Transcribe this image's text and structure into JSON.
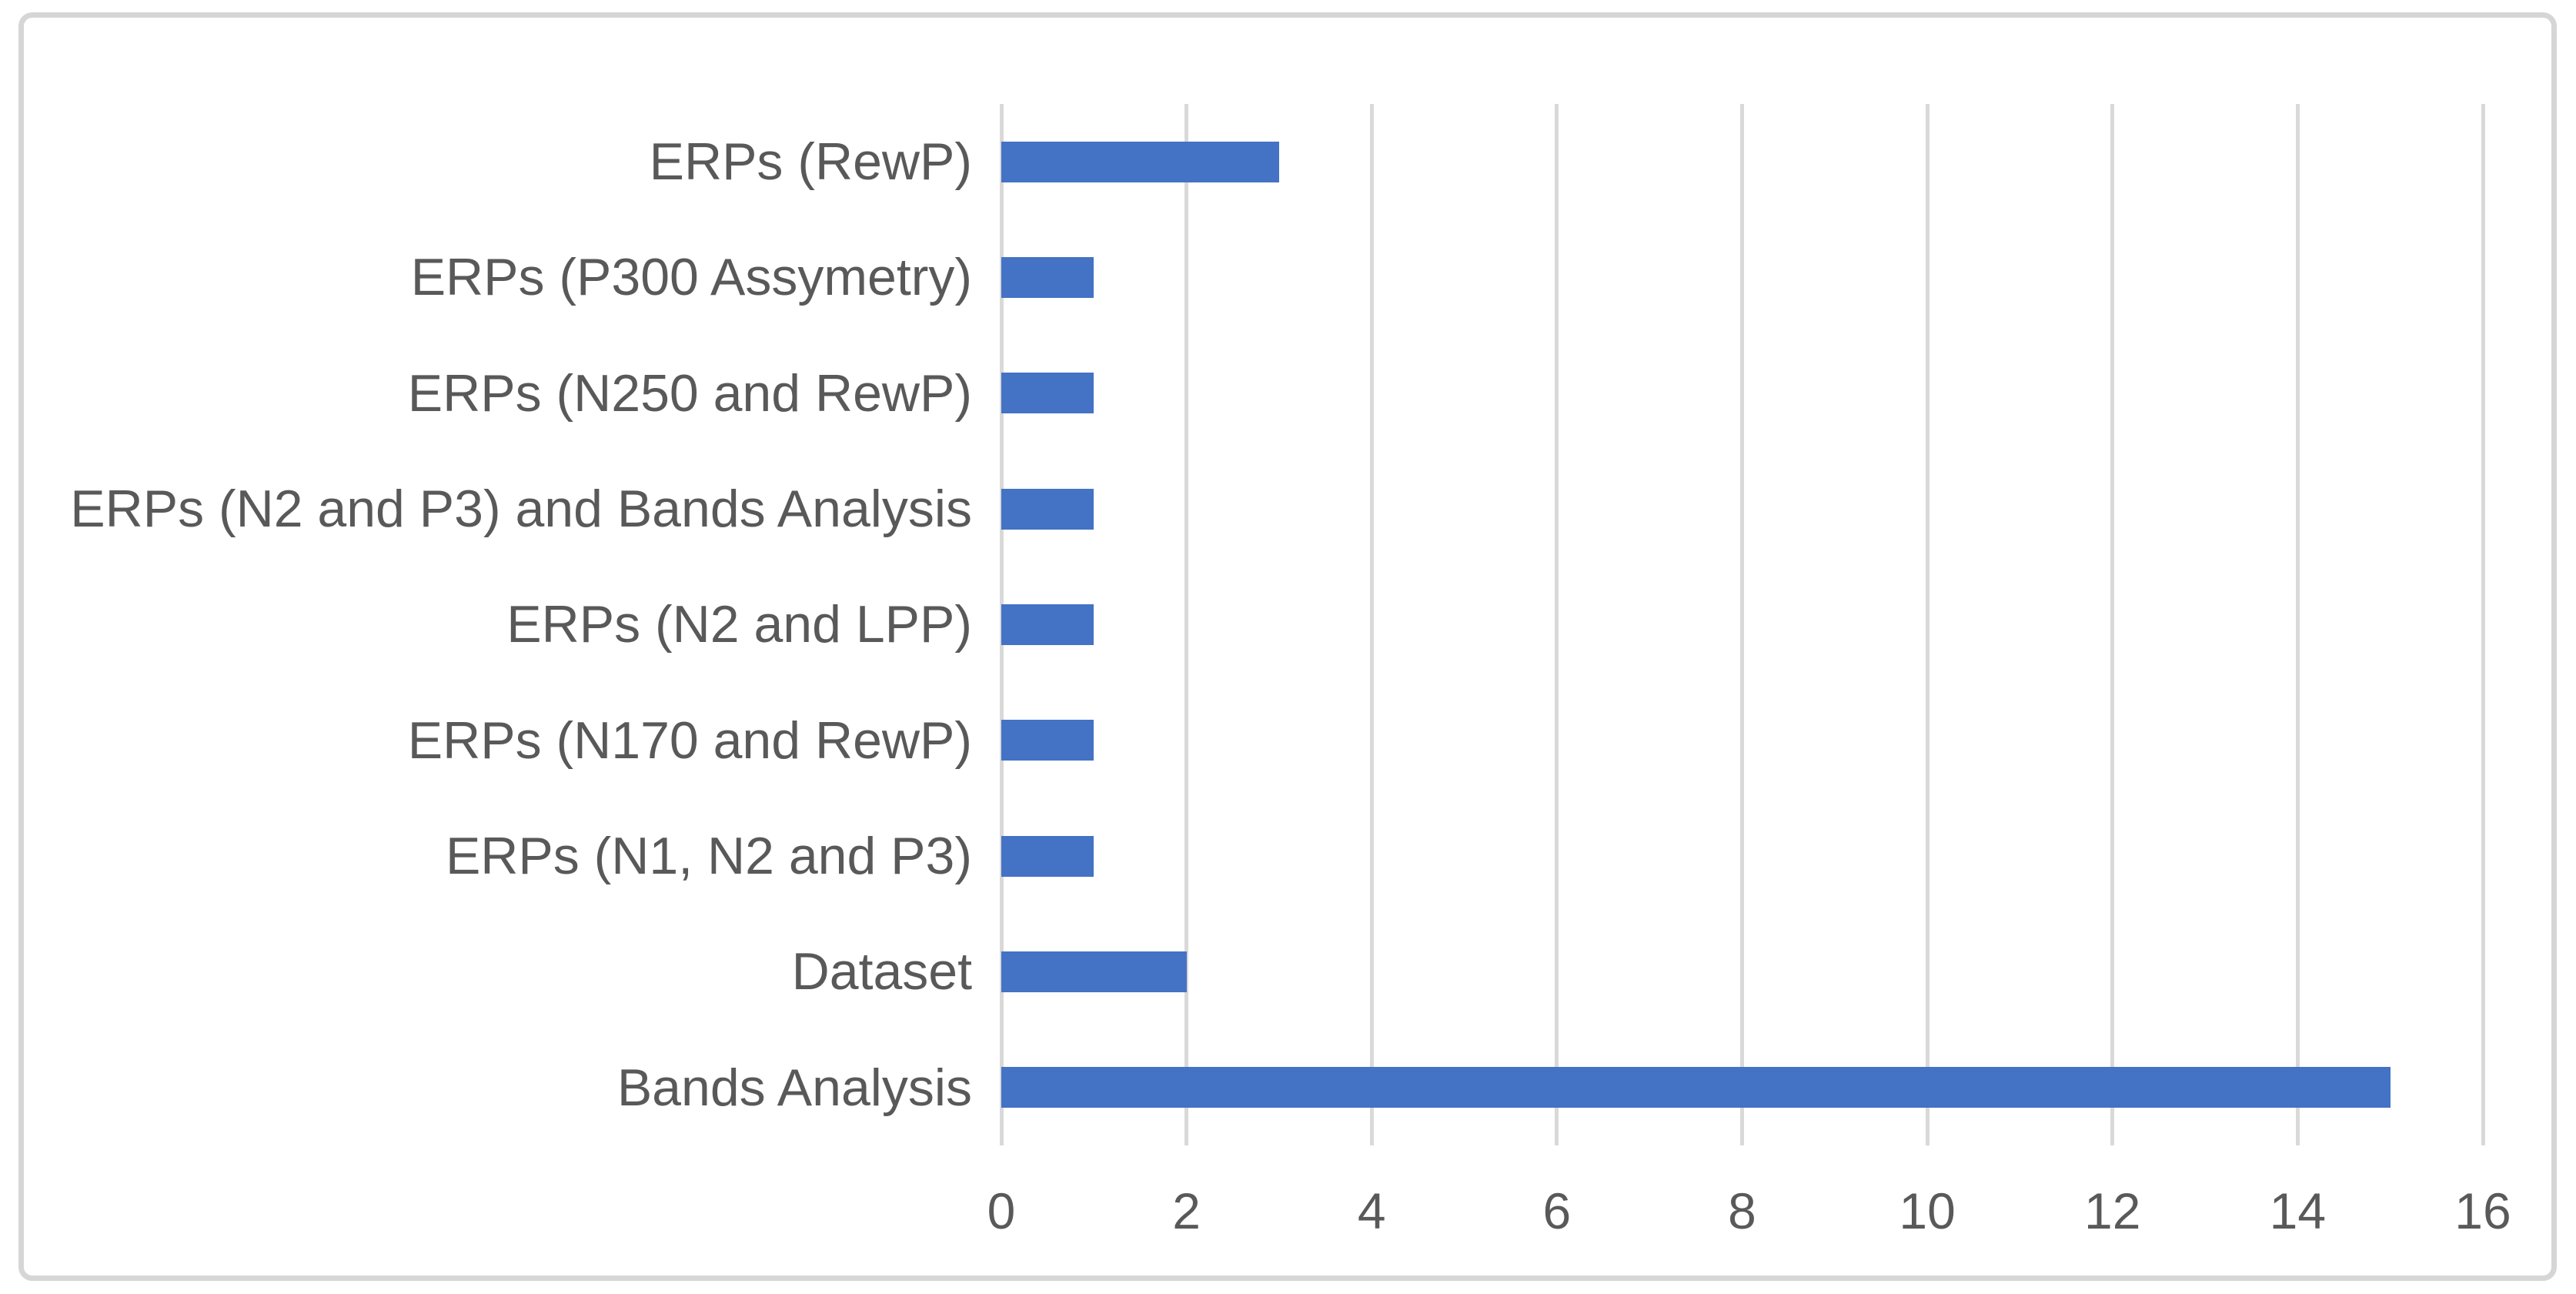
{
  "chart_data": {
    "type": "bar",
    "orientation": "horizontal",
    "title": "",
    "xlabel": "",
    "ylabel": "",
    "categories": [
      "ERPs (RewP)",
      "ERPs (P300 Assymetry)",
      "ERPs (N250 and RewP)",
      "ERPs (N2 and P3) and Bands Analysis",
      "ERPs (N2 and LPP)",
      "ERPs (N170 and RewP)",
      "ERPs (N1, N2 and P3)",
      "Dataset",
      "Bands Analysis"
    ],
    "values": [
      3,
      1,
      1,
      1,
      1,
      1,
      1,
      2,
      15
    ],
    "xlim": [
      0,
      16
    ],
    "x_ticks": [
      0,
      2,
      4,
      6,
      8,
      10,
      12,
      14,
      16
    ],
    "grid": true,
    "legend": "none",
    "colors": {
      "bar": "#4472c4",
      "gridline": "#d9d9d9",
      "text": "#595959",
      "frame_border": "#d6d6d6",
      "background": "#ffffff"
    }
  }
}
